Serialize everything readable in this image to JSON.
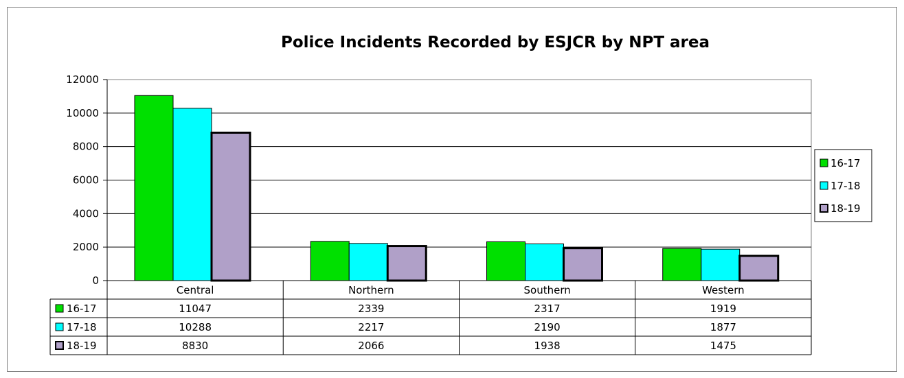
{
  "chart_data": {
    "type": "bar",
    "title": "Police Incidents Recorded by ESJCR by NPT area",
    "categories": [
      "Central",
      "Northern",
      "Southern",
      "Western"
    ],
    "series": [
      {
        "name": "16-17",
        "color": "#00e000",
        "values": [
          11047,
          2339,
          2317,
          1919
        ]
      },
      {
        "name": "17-18",
        "color": "#00ffff",
        "values": [
          10288,
          2217,
          2190,
          1877
        ]
      },
      {
        "name": "18-19",
        "color": "#b0a0c8",
        "values": [
          8830,
          2066,
          1938,
          1475
        ]
      }
    ],
    "ylim": [
      0,
      12000
    ],
    "yticks": [
      0,
      2000,
      4000,
      6000,
      8000,
      10000,
      12000
    ],
    "grid": true,
    "legend": "right",
    "data_table": true
  }
}
